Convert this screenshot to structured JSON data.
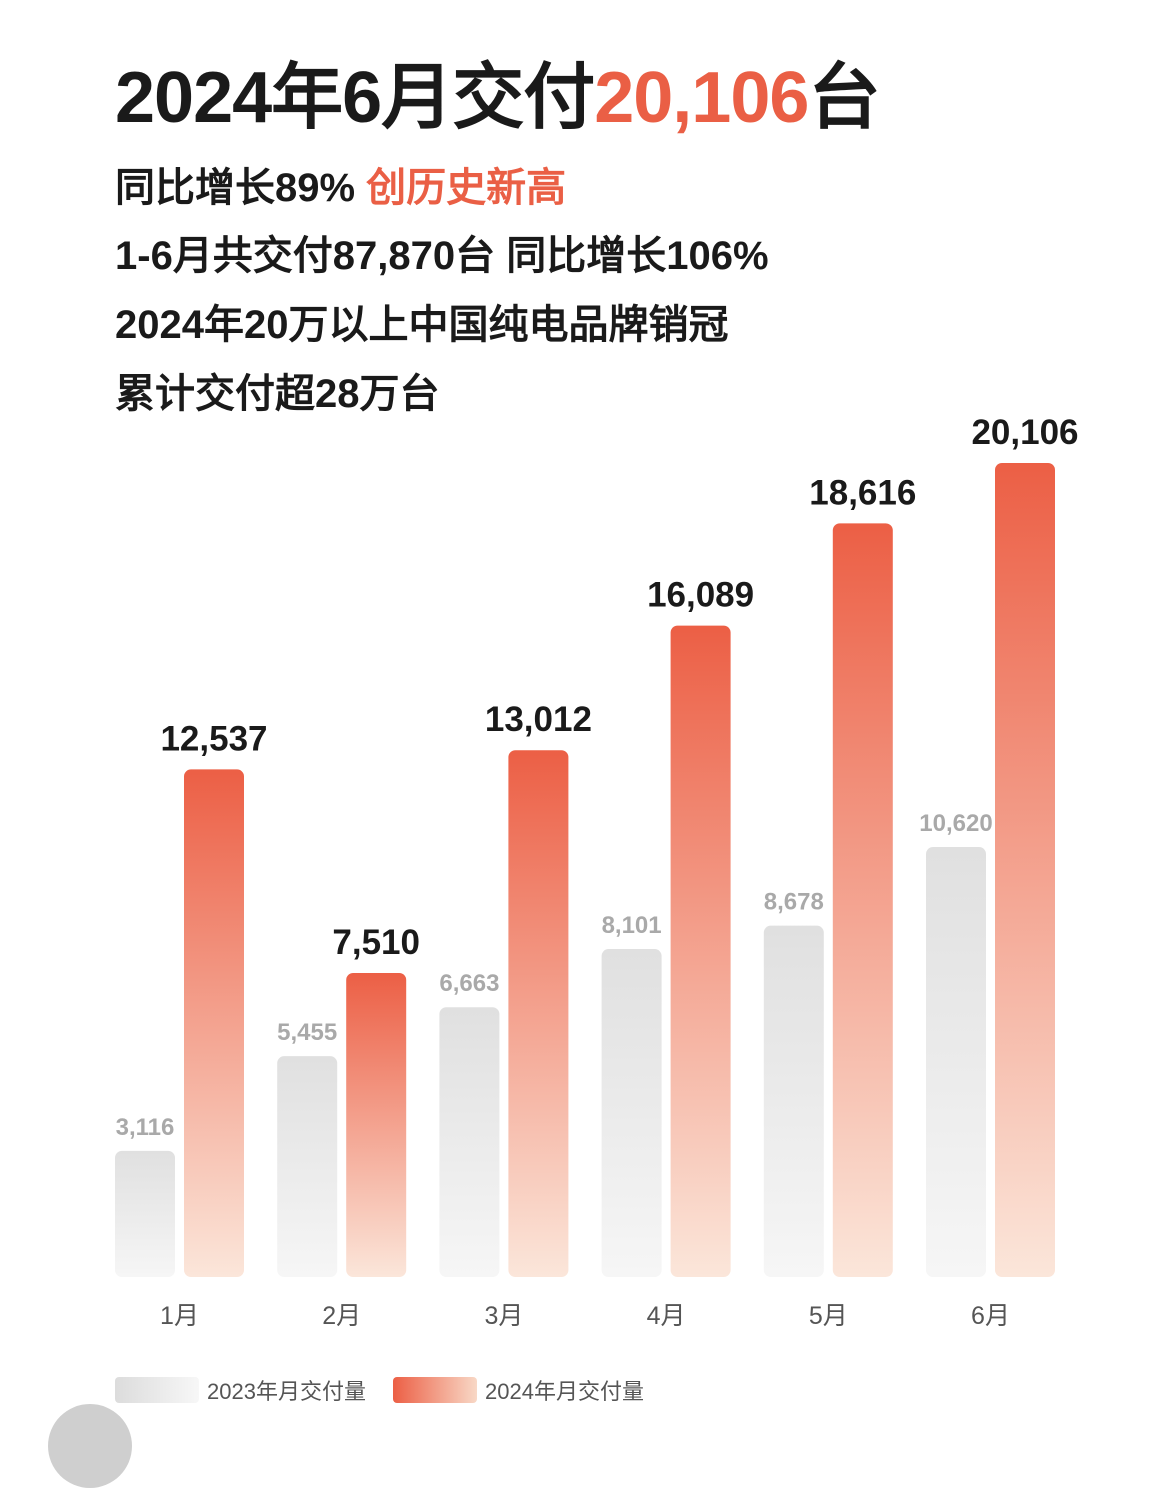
{
  "header": {
    "title_prefix": "2024年6月交付",
    "title_highlight": "20,106",
    "title_suffix": "台",
    "line1_main": "同比增长89% ",
    "line1_highlight": "创历史新高",
    "line2": "1-6月共交付87,870台 同比增长106%",
    "line3": "2024年20万以上中国纯电品牌销冠",
    "line4": "累计交付超28万台"
  },
  "colors": {
    "accent": "#ea5f45",
    "bar_2024_top": "#ec5f45",
    "bar_2024_bottom": "#fbe6da",
    "bar_2023_top": "#e0e0e0",
    "bar_2023_bottom": "#f6f6f6"
  },
  "chart_data": {
    "type": "bar",
    "title": "",
    "xlabel": "",
    "ylabel": "",
    "ylim": [
      0,
      20106
    ],
    "grid": false,
    "legend_position": "bottom-left",
    "categories": [
      "1月",
      "2月",
      "3月",
      "4月",
      "5月",
      "6月"
    ],
    "series": [
      {
        "name": "2023年月交付量",
        "values": [
          3116,
          5455,
          6663,
          8101,
          8678,
          10620
        ],
        "labels": [
          "3,116",
          "5,455",
          "6,663",
          "8,101",
          "8,678",
          "10,620"
        ]
      },
      {
        "name": "2024年月交付量",
        "values": [
          12537,
          7510,
          13012,
          16089,
          18616,
          20106
        ],
        "labels": [
          "12,537",
          "7,510",
          "13,012",
          "16,089",
          "18,616",
          "20,106"
        ]
      }
    ]
  },
  "legend": {
    "item_2023": "2023年月交付量",
    "item_2024": "2024年月交付量"
  }
}
